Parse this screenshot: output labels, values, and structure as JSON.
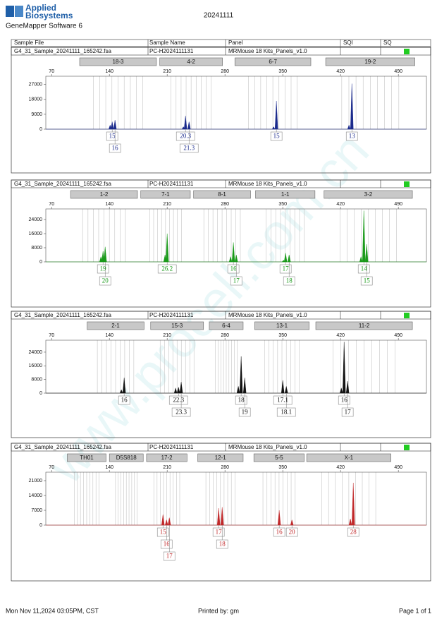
{
  "header": {
    "logo": [
      "Applied",
      "Biosystems"
    ],
    "software": "GeneMapper Software 6",
    "title": "20241111"
  },
  "columns": [
    "Sample File",
    "Sample Name",
    "Panel",
    "SQI",
    "SQ"
  ],
  "panels": [
    {
      "sample_file": "G4_31_Sample_20241111_165242.fsa",
      "sample_name": "PC-H2024111131",
      "panel": "MRMouse 18 Kits_Panels_v1.0",
      "sq_color": "#22cc22",
      "color": "#1a2a8c",
      "markers": [
        {
          "name": "18-3",
          "range": [
            104,
            197
          ]
        },
        {
          "name": "4-2",
          "range": [
            201,
            277
          ]
        },
        {
          "name": "6-7",
          "range": [
            292,
            384
          ]
        },
        {
          "name": "19-2",
          "range": [
            402,
            510
          ]
        }
      ],
      "xlim": [
        63,
        524
      ],
      "xticks": [
        70,
        140,
        210,
        280,
        350,
        420,
        490
      ],
      "ylim": [
        0,
        32000
      ],
      "yticks": [
        0,
        9000,
        18000,
        27000
      ],
      "peaks": [
        {
          "size": 140.9,
          "height": 2500
        },
        {
          "size": 143.4,
          "height": 4500,
          "allele": "15"
        },
        {
          "size": 146.8,
          "height": 5500,
          "allele": "16"
        },
        {
          "size": 229.6,
          "height": 1500
        },
        {
          "size": 232.2,
          "height": 8000,
          "allele": "20.3"
        },
        {
          "size": 236.5,
          "height": 4500,
          "allele": "21.3"
        },
        {
          "size": 338.9,
          "height": 1500
        },
        {
          "size": 342.3,
          "height": 17000,
          "allele": "15"
        },
        {
          "size": 430.2,
          "height": 2500
        },
        {
          "size": 433.7,
          "height": 27500,
          "allele": "13"
        }
      ]
    },
    {
      "sample_file": "G4_31_Sample_20241111_165242.fsa",
      "sample_name": "PC-H2024111131",
      "panel": "MRMouse 18 Kits_Panels_v1.0",
      "sq_color": "#22cc22",
      "color": "#1a9a1a",
      "markers": [
        {
          "name": "1-2",
          "range": [
            93,
            174
          ]
        },
        {
          "name": "7-1",
          "range": [
            178,
            238
          ]
        },
        {
          "name": "8-1",
          "range": [
            242,
            311
          ]
        },
        {
          "name": "1-1",
          "range": [
            317,
            389
          ]
        },
        {
          "name": "3-2",
          "range": [
            400,
            507
          ]
        }
      ],
      "xlim": [
        63,
        524
      ],
      "xticks": [
        70,
        140,
        210,
        280,
        350,
        420,
        490
      ],
      "ylim": [
        0,
        30000
      ],
      "yticks": [
        0,
        8000,
        16000,
        24000
      ],
      "peaks": [
        {
          "size": 129.8,
          "height": 3000
        },
        {
          "size": 132.3,
          "height": 6000,
          "allele": "19"
        },
        {
          "size": 134.9,
          "height": 8500,
          "allele": "20"
        },
        {
          "size": 207.4,
          "height": 4000
        },
        {
          "size": 210.0,
          "height": 16000,
          "allele": "26.2"
        },
        {
          "size": 286.8,
          "height": 3000
        },
        {
          "size": 290.2,
          "height": 11000,
          "allele": "16"
        },
        {
          "size": 293.7,
          "height": 4000,
          "allele": "17"
        },
        {
          "size": 350.9,
          "height": 1000
        },
        {
          "size": 353.4,
          "height": 5000,
          "allele": "17"
        },
        {
          "size": 357.7,
          "height": 4000,
          "allele": "18"
        },
        {
          "size": 444.8,
          "height": 3000
        },
        {
          "size": 448.2,
          "height": 29000,
          "allele": "14"
        },
        {
          "size": 451.6,
          "height": 10000,
          "allele": "15"
        }
      ]
    },
    {
      "sample_file": "G4_31_Sample_20241111_165242.fsa",
      "sample_name": "PC-H2024111131",
      "panel": "MRMouse 18 Kits_Panels_v1.0",
      "sq_color": "#22cc22",
      "color": "#111111",
      "markers": [
        {
          "name": "2-1",
          "range": [
            113,
            182
          ]
        },
        {
          "name": "15-3",
          "range": [
            190,
            254
          ]
        },
        {
          "name": "6-4",
          "range": [
            261,
            302
          ]
        },
        {
          "name": "13-1",
          "range": [
            316,
            382
          ]
        },
        {
          "name": "11-2",
          "range": [
            390,
            507
          ]
        }
      ],
      "xlim": [
        63,
        524
      ],
      "xticks": [
        70,
        140,
        210,
        280,
        350,
        420,
        490
      ],
      "ylim": [
        0,
        31000
      ],
      "yticks": [
        0,
        8000,
        16000,
        24000
      ],
      "peaks": [
        {
          "size": 154.5,
          "height": 2000
        },
        {
          "size": 157.9,
          "height": 9000,
          "allele": "16"
        },
        {
          "size": 220.2,
          "height": 3000
        },
        {
          "size": 223.7,
          "height": 3500,
          "allele": "22.3"
        },
        {
          "size": 227.0,
          "height": 6500,
          "allele": "23.3"
        },
        {
          "size": 296.2,
          "height": 4000
        },
        {
          "size": 299.6,
          "height": 21500,
          "allele": "18"
        },
        {
          "size": 303.9,
          "height": 9000,
          "allele": "19"
        },
        {
          "size": 350.0,
          "height": 7500,
          "allele": "17.1"
        },
        {
          "size": 354.3,
          "height": 4000,
          "allele": "18.1"
        },
        {
          "size": 420.9,
          "height": 3000
        },
        {
          "size": 424.3,
          "height": 30000,
          "allele": "16"
        },
        {
          "size": 428.5,
          "height": 7000,
          "allele": "17"
        }
      ]
    },
    {
      "sample_file": "G4_31_Sample_20241111_165242.fsa",
      "sample_name": "PC-H2024111131",
      "panel": "MRMouse 18 Kits_Panels_v1.0",
      "sq_color": "#22cc22",
      "color": "#c0282a",
      "markers": [
        {
          "name": "TH01",
          "range": [
            89,
            136
          ]
        },
        {
          "name": "D5S818",
          "range": [
            140,
            181
          ]
        },
        {
          "name": "17-2",
          "range": [
            185,
            234
          ]
        },
        {
          "name": "12-1",
          "range": [
            247,
            302
          ]
        },
        {
          "name": "5-5",
          "range": [
            315,
            376
          ]
        },
        {
          "name": "X-1",
          "range": [
            379,
            481
          ]
        }
      ],
      "xlim": [
        63,
        524
      ],
      "xticks": [
        70,
        140,
        210,
        280,
        350,
        420,
        490
      ],
      "ylim": [
        0,
        25000
      ],
      "yticks": [
        0,
        7000,
        14000,
        21000
      ],
      "peaks": [
        {
          "size": 204.9,
          "height": 5000,
          "allele": "15"
        },
        {
          "size": 209.2,
          "height": 2500,
          "allele": "16"
        },
        {
          "size": 212.6,
          "height": 3500,
          "allele": "17"
        },
        {
          "size": 272.3,
          "height": 8000,
          "allele": "17"
        },
        {
          "size": 276.6,
          "height": 8500,
          "allele": "18"
        },
        {
          "size": 345.7,
          "height": 7000,
          "allele": "16"
        },
        {
          "size": 361.1,
          "height": 2500,
          "allele": "20"
        },
        {
          "size": 431.9,
          "height": 3000
        },
        {
          "size": 435.4,
          "height": 20000,
          "allele": "28"
        }
      ]
    }
  ],
  "footer": {
    "printed_at": "Mon Nov 11,2024 03:05PM, CST",
    "printed_by": "Printed by: gm",
    "page": "Page 1 of 1"
  },
  "watermark": "www.procell.com.cn"
}
